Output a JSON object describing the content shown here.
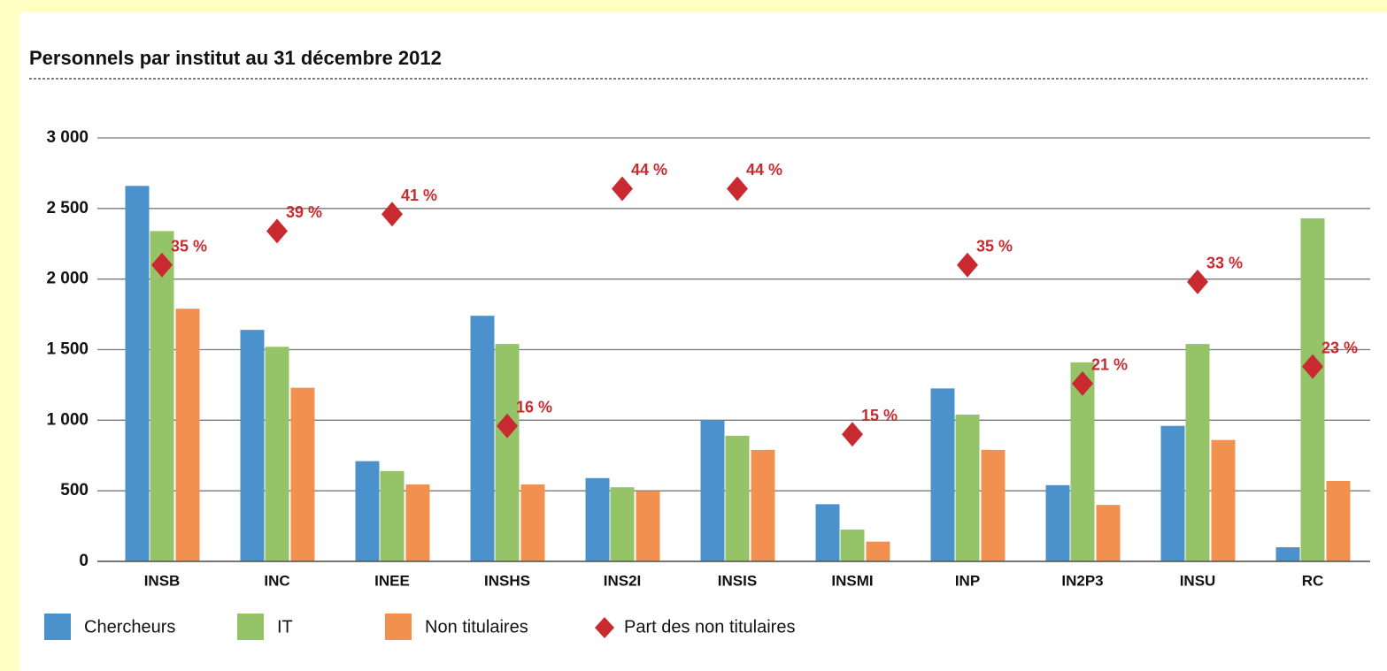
{
  "chart_data": {
    "type": "bar",
    "title": "Personnels par institut au 31 décembre 2012",
    "categories": [
      "INSB",
      "INC",
      "INEE",
      "INSHS",
      "INS2I",
      "INSIS",
      "INSMI",
      "INP",
      "IN2P3",
      "INSU",
      "RC"
    ],
    "series": [
      {
        "name": "Chercheurs",
        "color": "#4b91cb",
        "values": [
          2660,
          1640,
          710,
          1740,
          590,
          1000,
          405,
          1225,
          540,
          960,
          100
        ]
      },
      {
        "name": "IT",
        "color": "#94c368",
        "values": [
          2340,
          1520,
          640,
          1540,
          525,
          890,
          225,
          1040,
          1410,
          1540,
          2430
        ]
      },
      {
        "name": "Non titulaires",
        "color": "#f1904f",
        "values": [
          1790,
          1230,
          545,
          545,
          495,
          790,
          140,
          790,
          400,
          860,
          570
        ]
      },
      {
        "name": "Part des non titulaires",
        "color": "#c92a2f",
        "type": "scatter",
        "axis": "y2",
        "values": [
          35,
          39,
          41,
          16,
          44,
          44,
          15,
          35,
          21,
          33,
          23
        ],
        "value_labels": [
          "35 %",
          "39 %",
          "41 %",
          "16 %",
          "44 %",
          "44 %",
          "15 %",
          "35 %",
          "21 %",
          "33 %",
          "23 %"
        ]
      }
    ],
    "ylim": [
      0,
      3000
    ],
    "yticks": [
      0,
      500,
      {
        "value": 1000,
        "label": "1 000"
      },
      {
        "value": 1500,
        "label": "1 500"
      },
      {
        "value": 2000,
        "label": "2 000"
      },
      {
        "value": 2500,
        "label": "2 500"
      },
      {
        "value": 3000,
        "label": "3 000"
      }
    ],
    "y2lim": [
      0,
      50
    ],
    "grid": true,
    "legend": "bottom"
  }
}
